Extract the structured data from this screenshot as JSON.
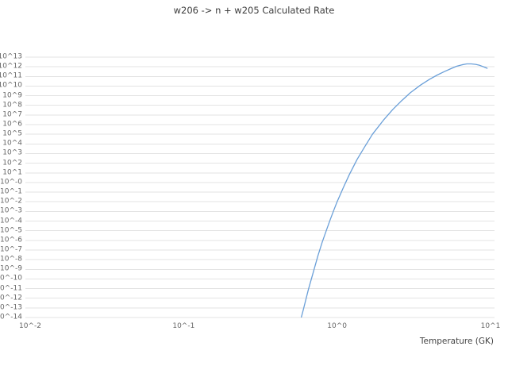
{
  "chart_data": {
    "type": "line",
    "title": "w206 -> n + w205 Calculated Rate",
    "xlabel": "Temperature (GK)",
    "ylabel": "",
    "x_scale": "log",
    "y_scale": "log",
    "xlim": [
      0.01,
      10
    ],
    "ylim_log10": [
      -14,
      13
    ],
    "grid": "horizontal-only",
    "legend": "none",
    "x_tick_labels": [
      "10^-2",
      "10^-1",
      "10^0",
      "10^1"
    ],
    "x_tick_logs": [
      -2,
      -1,
      0,
      1
    ],
    "y_tick_labels": [
      "10^13",
      "10^12",
      "10^11",
      "10^10",
      "10^9",
      "10^8",
      "10^7",
      "10^6",
      "10^5",
      "10^4",
      "10^3",
      "10^2",
      "10^1",
      "10^-0",
      "10^-1",
      "10^-2",
      "10^-3",
      "10^-4",
      "10^-5",
      "10^-6",
      "10^-7",
      "10^-8",
      "10^-9",
      "10^-10",
      "10^-11",
      "10^-12",
      "10^-13",
      "10^-14"
    ],
    "series": [
      {
        "name": "calculated rate",
        "color": "#6a9fd8",
        "x_GK": [
          0.58,
          0.6,
          0.65,
          0.7,
          0.75,
          0.8,
          0.85,
          0.9,
          0.95,
          1.0,
          1.1,
          1.2,
          1.35,
          1.5,
          1.7,
          2.0,
          2.3,
          2.6,
          3.0,
          3.5,
          4.0,
          4.5,
          5.0,
          5.5,
          6.0,
          6.5,
          7.0,
          7.5,
          8.0,
          8.5,
          9.0,
          9.5
        ],
        "log10_rate": [
          -14.2,
          -13.3,
          -11.1,
          -9.3,
          -7.6,
          -6.2,
          -5.0,
          -3.9,
          -2.9,
          -2.0,
          -0.5,
          0.8,
          2.4,
          3.6,
          5.0,
          6.45,
          7.55,
          8.4,
          9.3,
          10.1,
          10.7,
          11.15,
          11.5,
          11.8,
          12.05,
          12.2,
          12.3,
          12.3,
          12.25,
          12.15,
          12.0,
          11.85
        ]
      }
    ],
    "colors": {
      "line": "#6a9fd8",
      "grid": "#e3e3e3",
      "tick_text": "#666666",
      "title_text": "#3c3c3c",
      "background": "#ffffff"
    }
  }
}
